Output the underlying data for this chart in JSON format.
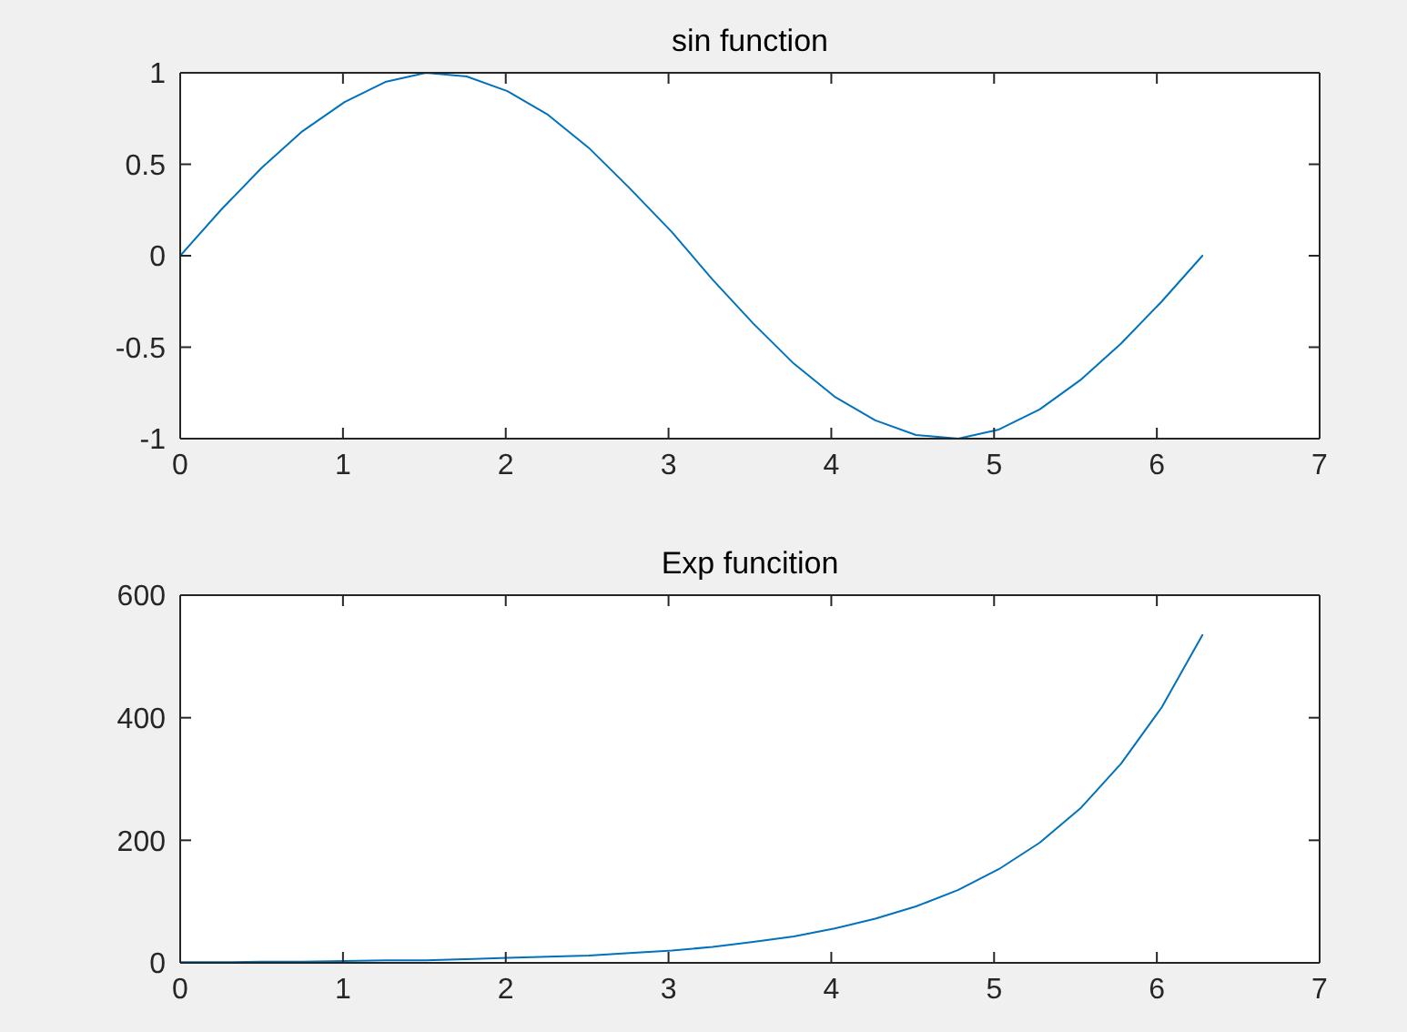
{
  "chart_data": [
    {
      "type": "line",
      "title": "sin function",
      "x": [
        0,
        0.25,
        0.5,
        0.75,
        1.01,
        1.26,
        1.51,
        1.76,
        2.01,
        2.26,
        2.51,
        2.76,
        3.02,
        3.27,
        3.52,
        3.77,
        4.02,
        4.27,
        4.52,
        4.78,
        5.03,
        5.28,
        5.53,
        5.78,
        6.03,
        6.28
      ],
      "series": [
        {
          "color": "#0072bd",
          "values": [
            0,
            0.25,
            0.48,
            0.68,
            0.84,
            0.95,
            1,
            0.98,
            0.9,
            0.77,
            0.59,
            0.37,
            0.13,
            -0.13,
            -0.37,
            -0.59,
            -0.77,
            -0.9,
            -0.98,
            -1,
            -0.95,
            -0.84,
            -0.68,
            -0.48,
            -0.25,
            0
          ]
        }
      ],
      "xlim": [
        0,
        7
      ],
      "xticks": [
        0,
        1,
        2,
        3,
        4,
        5,
        6,
        7
      ],
      "ylim": [
        -1,
        1
      ],
      "yticks": [
        -1,
        -0.5,
        0,
        0.5,
        1
      ]
    },
    {
      "type": "line",
      "title": "Exp funcition",
      "x": [
        0,
        0.25,
        0.5,
        0.75,
        1.01,
        1.26,
        1.51,
        1.76,
        2.01,
        2.26,
        2.51,
        2.76,
        3.02,
        3.27,
        3.52,
        3.77,
        4.02,
        4.27,
        4.52,
        4.78,
        5.03,
        5.28,
        5.53,
        5.78,
        6.03,
        6.28
      ],
      "series": [
        {
          "color": "#0072bd",
          "values": [
            1,
            1,
            2,
            2,
            3,
            4,
            4,
            6,
            8,
            10,
            12,
            16,
            20,
            26,
            34,
            43,
            56,
            72,
            92,
            119,
            153,
            196,
            252,
            325,
            417,
            535
          ]
        }
      ],
      "xlim": [
        0,
        7
      ],
      "xticks": [
        0,
        1,
        2,
        3,
        4,
        5,
        6,
        7
      ],
      "ylim": [
        0,
        600
      ],
      "yticks": [
        0,
        200,
        400,
        600
      ]
    }
  ]
}
